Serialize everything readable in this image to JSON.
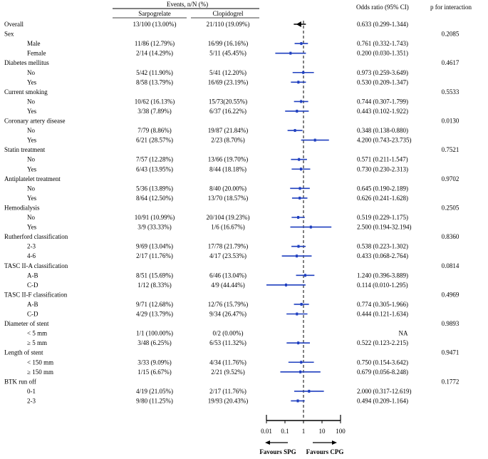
{
  "chart_data": {
    "type": "forest",
    "title": "",
    "header": {
      "events_group": "Events, n/N (%)",
      "group1": "Sarpogrelate",
      "group2": "Clopidogrel",
      "odds_ratio": "Odds ratio (95% CI)",
      "p_interaction": "p for interaction"
    },
    "rows": [
      {
        "label": "Overall",
        "level": 0,
        "g1": "13/100 (13.00%)",
        "g2": "21/110 (19.09%)",
        "or_text": "0.633 (0.299-1.344)",
        "or": 0.633,
        "lo": 0.299,
        "hi": 1.344,
        "p": "",
        "overall": true
      },
      {
        "label": "Sex",
        "level": 0,
        "p": "0.2085"
      },
      {
        "label": "Male",
        "level": 1,
        "g1": "11/86 (12.79%)",
        "g2": "16/99 (16.16%)",
        "or_text": "0.761 (0.332-1.743)",
        "or": 0.761,
        "lo": 0.332,
        "hi": 1.743
      },
      {
        "label": "Female",
        "level": 1,
        "g1": "2/14 (14.29%)",
        "g2": "5/11 (45.45%)",
        "or_text": "0.200 (0.030-1.351)",
        "or": 0.2,
        "lo": 0.03,
        "hi": 1.351
      },
      {
        "label": "Diabetes mellitus",
        "level": 0,
        "p": "0.4617"
      },
      {
        "label": "No",
        "level": 1,
        "g1": "5/42 (11.90%)",
        "g2": "5/41 (12.20%)",
        "or_text": "0.973 (0.259-3.649)",
        "or": 0.973,
        "lo": 0.259,
        "hi": 3.649
      },
      {
        "label": "Yes",
        "level": 1,
        "g1": "8/58 (13.79%)",
        "g2": "16/69 (23.19%)",
        "or_text": "0.530 (0.209-1.347)",
        "or": 0.53,
        "lo": 0.209,
        "hi": 1.347
      },
      {
        "label": "Current smoking",
        "level": 0,
        "p": "0.5533"
      },
      {
        "label": "No",
        "level": 1,
        "g1": "10/62 (16.13%)",
        "g2": "15/73(20.55%)",
        "or_text": "0.744 (0.307-1.799)",
        "or": 0.744,
        "lo": 0.307,
        "hi": 1.799
      },
      {
        "label": "Yes",
        "level": 1,
        "g1": "3/38 (7.89%)",
        "g2": "6/37 (16.22%)",
        "or_text": "0.443 (0.102-1.922)",
        "or": 0.443,
        "lo": 0.102,
        "hi": 1.922
      },
      {
        "label": "Coronary artery disease",
        "level": 0,
        "p": "0.0130"
      },
      {
        "label": "No",
        "level": 1,
        "g1": "7/79 (8.86%)",
        "g2": "19/87 (21.84%)",
        "or_text": "0.348 (0.138-0.880)",
        "or": 0.348,
        "lo": 0.138,
        "hi": 0.88
      },
      {
        "label": "Yes",
        "level": 1,
        "g1": "6/21 (28.57%)",
        "g2": "2/23 (8.70%)",
        "or_text": "4.200 (0.743-23.735)",
        "or": 4.2,
        "lo": 0.743,
        "hi": 23.735
      },
      {
        "label": "Statin treatment",
        "level": 0,
        "p": "0.7521"
      },
      {
        "label": "No",
        "level": 1,
        "g1": "7/57 (12.28%)",
        "g2": "13/66 (19.70%)",
        "or_text": "0.571 (0.211-1.547)",
        "or": 0.571,
        "lo": 0.211,
        "hi": 1.547
      },
      {
        "label": "Yes",
        "level": 1,
        "g1": "6/43 (13.95%)",
        "g2": "8/44 (18.18%)",
        "or_text": "0.730 (0.230-2.313)",
        "or": 0.73,
        "lo": 0.23,
        "hi": 2.313
      },
      {
        "label": "Antiplatelet treatment",
        "level": 0,
        "p": "0.9702"
      },
      {
        "label": "No",
        "level": 1,
        "g1": "5/36 (13.89%)",
        "g2": "8/40 (20.00%)",
        "or_text": "0.645 (0.190-2.189)",
        "or": 0.645,
        "lo": 0.19,
        "hi": 2.189
      },
      {
        "label": "Yes",
        "level": 1,
        "g1": "8/64 (12.50%)",
        "g2": "13/70 (18.57%)",
        "or_text": "0.626 (0.241-1.628)",
        "or": 0.626,
        "lo": 0.241,
        "hi": 1.628
      },
      {
        "label": "Hemodialysis",
        "level": 0,
        "p": "0.2505"
      },
      {
        "label": "No",
        "level": 1,
        "g1": "10/91 (10.99%)",
        "g2": "20/104 (19.23%)",
        "or_text": "0.519 (0.229-1.175)",
        "or": 0.519,
        "lo": 0.229,
        "hi": 1.175
      },
      {
        "label": "Yes",
        "level": 1,
        "g1": "3/9 (33.33%)",
        "g2": "1/6 (16.67%)",
        "or_text": "2.500 (0.194-32.194)",
        "or": 2.5,
        "lo": 0.194,
        "hi": 32.194
      },
      {
        "label": "Rutherford classification",
        "level": 0,
        "p": "0.8360"
      },
      {
        "label": "2-3",
        "level": 1,
        "g1": "9/69 (13.04%)",
        "g2": "17/78 (21.79%)",
        "or_text": "0.538 (0.223-1.302)",
        "or": 0.538,
        "lo": 0.223,
        "hi": 1.302
      },
      {
        "label": "4-6",
        "level": 1,
        "g1": "2/17 (11.76%)",
        "g2": "4/17 (23.53%)",
        "or_text": "0.433 (0.068-2.764)",
        "or": 0.433,
        "lo": 0.068,
        "hi": 2.764
      },
      {
        "label": "TASC II-A classification",
        "level": 0,
        "p": "0.0814"
      },
      {
        "label": "A-B",
        "level": 1,
        "g1": "8/51 (15.69%)",
        "g2": "6/46 (13.04%)",
        "or_text": "1.240 (0.396-3.889)",
        "or": 1.24,
        "lo": 0.396,
        "hi": 3.889
      },
      {
        "label": "C-D",
        "level": 1,
        "g1": "1/12 (8.33%)",
        "g2": "4/9 (44.44%)",
        "or_text": "0.114 (0.010-1.295)",
        "or": 0.114,
        "lo": 0.01,
        "hi": 1.295
      },
      {
        "label": "TASC II-F classification",
        "level": 0,
        "p": "0.4969"
      },
      {
        "label": "A-B",
        "level": 1,
        "g1": "9/71 (12.68%)",
        "g2": "12/76 (15.79%)",
        "or_text": "0.774 (0.305-1.966)",
        "or": 0.774,
        "lo": 0.305,
        "hi": 1.966
      },
      {
        "label": "C-D",
        "level": 1,
        "g1": "4/29 (13.79%)",
        "g2": "9/34 (26.47%)",
        "or_text": "0.444 (0.121-1.634)",
        "or": 0.444,
        "lo": 0.121,
        "hi": 1.634
      },
      {
        "label": "Diameter of stent",
        "level": 0,
        "p": "0.9893"
      },
      {
        "label": "< 5 mm",
        "level": 1,
        "g1": "1/1 (100.00%)",
        "g2": "0/2 (0.00%)",
        "or_text": "NA",
        "or": null,
        "lo": null,
        "hi": null,
        "na": true
      },
      {
        "label": "≥ 5 mm",
        "level": 1,
        "g1": "3/48 (6.25%)",
        "g2": "6/53 (11.32%)",
        "or_text": "0.522 (0.123-2.215)",
        "or": 0.522,
        "lo": 0.123,
        "hi": 2.215
      },
      {
        "label": "Length of stent",
        "level": 0,
        "p": "0.9471"
      },
      {
        "label": "< 150 mm",
        "level": 1,
        "g1": "3/33 (9.09%)",
        "g2": "4/34 (11.76%)",
        "or_text": "0.750 (0.154-3.642)",
        "or": 0.75,
        "lo": 0.154,
        "hi": 3.642
      },
      {
        "label": "≥ 150 mm",
        "level": 1,
        "g1": "1/15 (6.67%)",
        "g2": "2/21 (9.52%)",
        "or_text": "0.679 (0.056-8.248)",
        "or": 0.679,
        "lo": 0.056,
        "hi": 8.248
      },
      {
        "label": "BTK run off",
        "level": 0,
        "p": "0.1772"
      },
      {
        "label": "0-1",
        "level": 1,
        "g1": "4/19 (21.05%)",
        "g2": "2/17 (11.76%)",
        "or_text": "2.000 (0.317-12.619)",
        "or": 2.0,
        "lo": 0.317,
        "hi": 12.619
      },
      {
        "label": "2-3",
        "level": 1,
        "g1": "9/80 (11.25%)",
        "g2": "19/93 (20.43%)",
        "or_text": "0.494 (0.209-1.164)",
        "or": 0.494,
        "lo": 0.209,
        "hi": 1.164
      }
    ],
    "x_axis": {
      "scale": "log",
      "range": [
        0.01,
        100
      ],
      "ticks": [
        0.01,
        0.1,
        1,
        10,
        100
      ],
      "tick_labels": [
        "0.01",
        "0.1",
        "1",
        "10",
        "100"
      ],
      "reference": 1
    },
    "favours_left": "Favours SPG",
    "favours_right": "Favours CPG",
    "colors": {
      "marker": "#1f3fbf",
      "text": "#000000"
    }
  }
}
